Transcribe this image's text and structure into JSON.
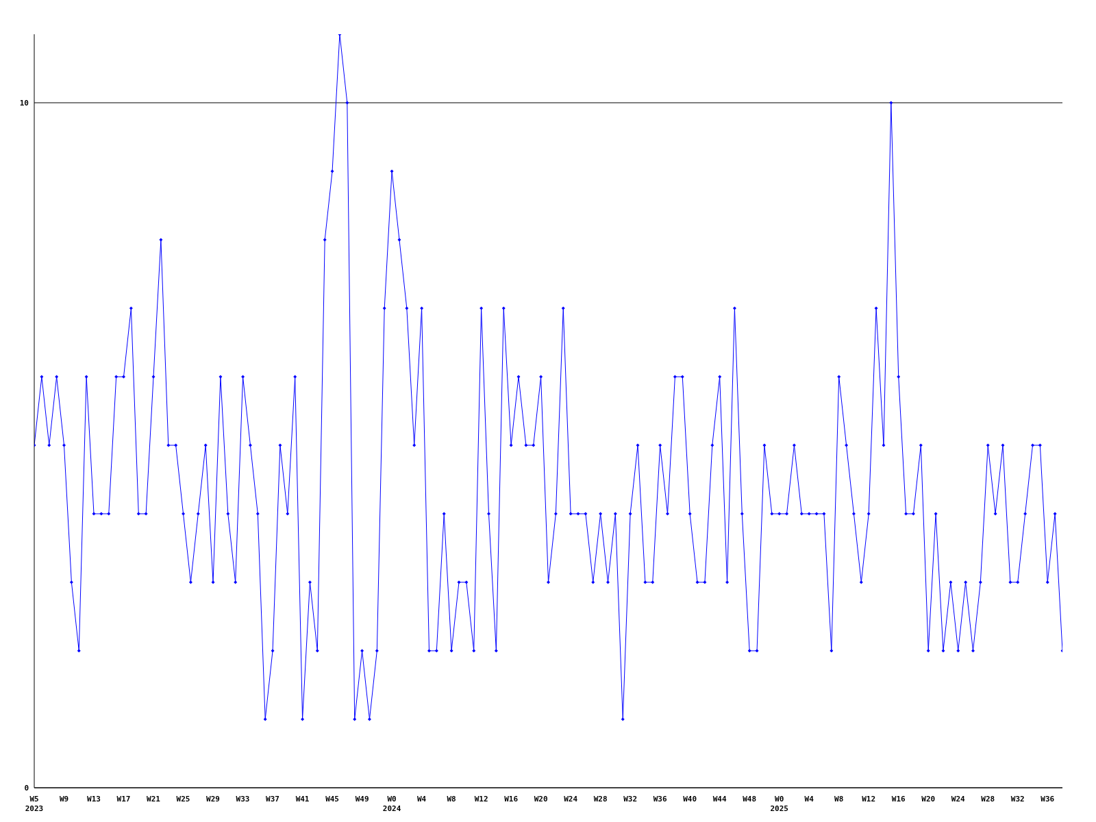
{
  "chart_data": {
    "type": "line",
    "categories": [
      "W5\n2023",
      null,
      null,
      null,
      "W9",
      null,
      null,
      null,
      "W13",
      null,
      null,
      null,
      "W17",
      null,
      null,
      null,
      "W21",
      null,
      null,
      null,
      "W25",
      null,
      null,
      null,
      "W29",
      null,
      null,
      null,
      "W33",
      null,
      null,
      null,
      "W37",
      null,
      null,
      null,
      "W41",
      null,
      null,
      null,
      "W45",
      null,
      null,
      null,
      "W49",
      null,
      null,
      null,
      "W0\n2024",
      null,
      null,
      null,
      "W4",
      null,
      null,
      null,
      "W8",
      null,
      null,
      null,
      "W12",
      null,
      null,
      null,
      "W16",
      null,
      null,
      null,
      "W20",
      null,
      null,
      null,
      "W24",
      null,
      null,
      null,
      "W28",
      null,
      null,
      null,
      "W32",
      null,
      null,
      null,
      "W36",
      null,
      null,
      null,
      "W40",
      null,
      null,
      null,
      "W44",
      null,
      null,
      null,
      "W48",
      null,
      null,
      null,
      "W0\n2025",
      null,
      null,
      null,
      "W4",
      null,
      null,
      null,
      "W8",
      null,
      null,
      null,
      "W12",
      null,
      null,
      null,
      "W16",
      null,
      null,
      null,
      "W20",
      null,
      null,
      null,
      "W24",
      null,
      null,
      null,
      "W28",
      null,
      null,
      null,
      "W32",
      null,
      null,
      null,
      "W36",
      null,
      null
    ],
    "series": [
      {
        "color": "#0000ff",
        "values": [
          5,
          6,
          5,
          6,
          5,
          3,
          2,
          6,
          4,
          4,
          4,
          6,
          6,
          7,
          4,
          4,
          6,
          8,
          5,
          5,
          4,
          3,
          4,
          5,
          3,
          6,
          4,
          3,
          6,
          5,
          4,
          1,
          2,
          5,
          4,
          6,
          1,
          3,
          2,
          8,
          9,
          11,
          10,
          1,
          2,
          1,
          2,
          7,
          9,
          8,
          7,
          5,
          7,
          2,
          2,
          4,
          2,
          3,
          3,
          2,
          7,
          4,
          2,
          7,
          5,
          6,
          5,
          5,
          6,
          3,
          4,
          7,
          4,
          4,
          4,
          3,
          4,
          3,
          4,
          1,
          4,
          5,
          3,
          3,
          5,
          4,
          6,
          6,
          4,
          3,
          3,
          5,
          6,
          3,
          7,
          4,
          2,
          2,
          5,
          4,
          4,
          4,
          5,
          4,
          4,
          4,
          4,
          2,
          6,
          5,
          4,
          3,
          4,
          7,
          5,
          10,
          6,
          4,
          4,
          5,
          2,
          4,
          2,
          3,
          2,
          3,
          2,
          3,
          5,
          4,
          5,
          3,
          3,
          4,
          5,
          5,
          3,
          4,
          2
        ]
      }
    ],
    "ylim": [
      0,
      11
    ],
    "yticks": [
      0,
      10
    ],
    "grid": "y",
    "legend": false,
    "marker": "diamond",
    "line_style": "solid"
  }
}
